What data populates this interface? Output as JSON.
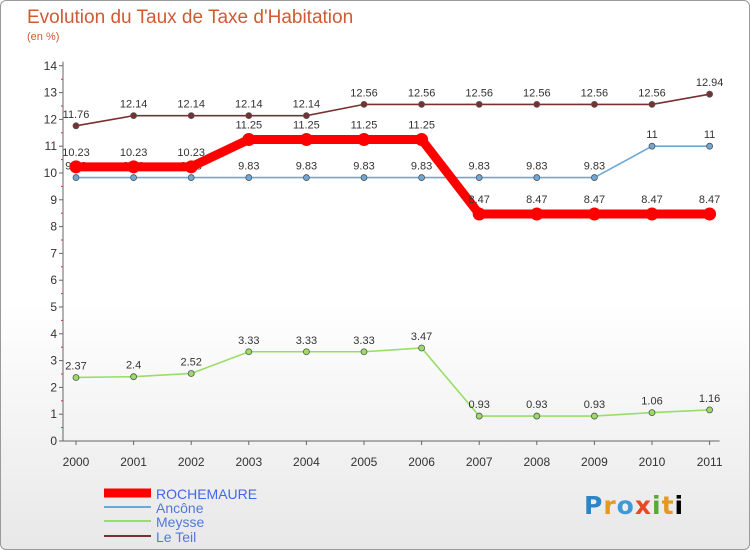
{
  "header": {
    "title": "Evolution du Taux de Taxe d'Habitation",
    "subtitle": "(en %)"
  },
  "logo": {
    "text": [
      "P",
      "r",
      "o",
      "x",
      "i",
      "t",
      "i"
    ]
  },
  "chart_data": {
    "type": "line",
    "title": "Evolution du Taux de Taxe d'Habitation",
    "subtitle": "(en %)",
    "categories": [
      "2000",
      "2001",
      "2002",
      "2003",
      "2004",
      "2005",
      "2006",
      "2007",
      "2008",
      "2009",
      "2010",
      "2011"
    ],
    "y_ticks": [
      0,
      1,
      2,
      3,
      4,
      5,
      6,
      7,
      8,
      9,
      10,
      11,
      12,
      13,
      14
    ],
    "ylim": [
      0,
      14
    ],
    "grid": false,
    "legend_position": "bottom-left",
    "series": [
      {
        "name": "ROCHEMAURE",
        "color": "#ff0000",
        "values": [
          10.23,
          10.23,
          10.23,
          11.25,
          11.25,
          11.25,
          11.25,
          8.47,
          8.47,
          8.47,
          8.47,
          8.47
        ],
        "labels": [
          "10.23",
          "10.23",
          "10.23",
          "11.25",
          "11.25",
          "11.25",
          "11.25",
          "8.47",
          "8.47",
          "8.47",
          "8.47",
          "8.47"
        ]
      },
      {
        "name": "Ancône",
        "color": "#6fa8d6",
        "values": [
          9.83,
          9.83,
          9.83,
          9.83,
          9.83,
          9.83,
          9.83,
          9.83,
          9.83,
          9.83,
          11,
          11
        ],
        "labels": [
          "9.83",
          "9.83",
          "9.83",
          "9.83",
          "9.83",
          "9.83",
          "9.83",
          "9.83",
          "9.83",
          "9.83",
          "11",
          "11"
        ]
      },
      {
        "name": "Meysse",
        "color": "#99dd66",
        "values": [
          2.37,
          2.4,
          2.52,
          3.33,
          3.33,
          3.33,
          3.47,
          0.93,
          0.93,
          0.93,
          1.06,
          1.16
        ],
        "labels": [
          "2.37",
          "2.4",
          "2.52",
          "3.33",
          "3.33",
          "3.33",
          "3.47",
          "0.93",
          "0.93",
          "0.93",
          "1.06",
          "1.16"
        ]
      },
      {
        "name": "Le Teil",
        "color": "#7a3030",
        "values": [
          11.76,
          12.14,
          12.14,
          12.14,
          12.14,
          12.56,
          12.56,
          12.56,
          12.56,
          12.56,
          12.56,
          12.94
        ],
        "labels": [
          "11.76",
          "12.14",
          "12.14",
          "12.14",
          "12.14",
          "12.56",
          "12.56",
          "12.56",
          "12.56",
          "12.56",
          "12.56",
          "12.94"
        ]
      }
    ]
  }
}
